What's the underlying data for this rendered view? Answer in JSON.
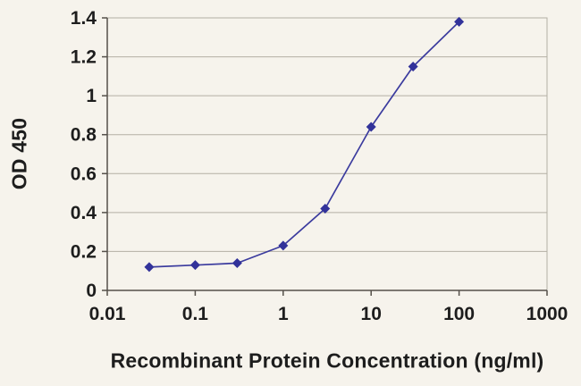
{
  "chart_data": {
    "type": "line",
    "title": "",
    "xlabel": "Recombinant Protein Concentration (ng/ml)",
    "ylabel": "OD 450",
    "x_scale": "log",
    "xlim": [
      0.01,
      1000
    ],
    "ylim": [
      0,
      1.4
    ],
    "x_tick_labels": [
      "0.01",
      "0.1",
      "1",
      "10",
      "100",
      "1000"
    ],
    "x_tick_values": [
      0.01,
      0.1,
      1,
      10,
      100,
      1000
    ],
    "y_ticks": [
      0,
      0.2,
      0.4,
      0.6,
      0.8,
      1,
      1.2,
      1.4
    ],
    "grid": "horizontal",
    "legend": "none",
    "marker": "diamond",
    "series": [
      {
        "name": "OD 450",
        "x": [
          0.03,
          0.1,
          0.3,
          1,
          3,
          10,
          30,
          100
        ],
        "values": [
          0.12,
          0.13,
          0.14,
          0.23,
          0.42,
          0.84,
          1.15,
          1.38
        ]
      }
    ],
    "colors": {
      "line": "#3b3b9e",
      "marker": "#32329a",
      "grid": "#b3afa4",
      "axis": "#55504a",
      "text": "#1d1d1d",
      "background": "#f6f3ec"
    }
  }
}
